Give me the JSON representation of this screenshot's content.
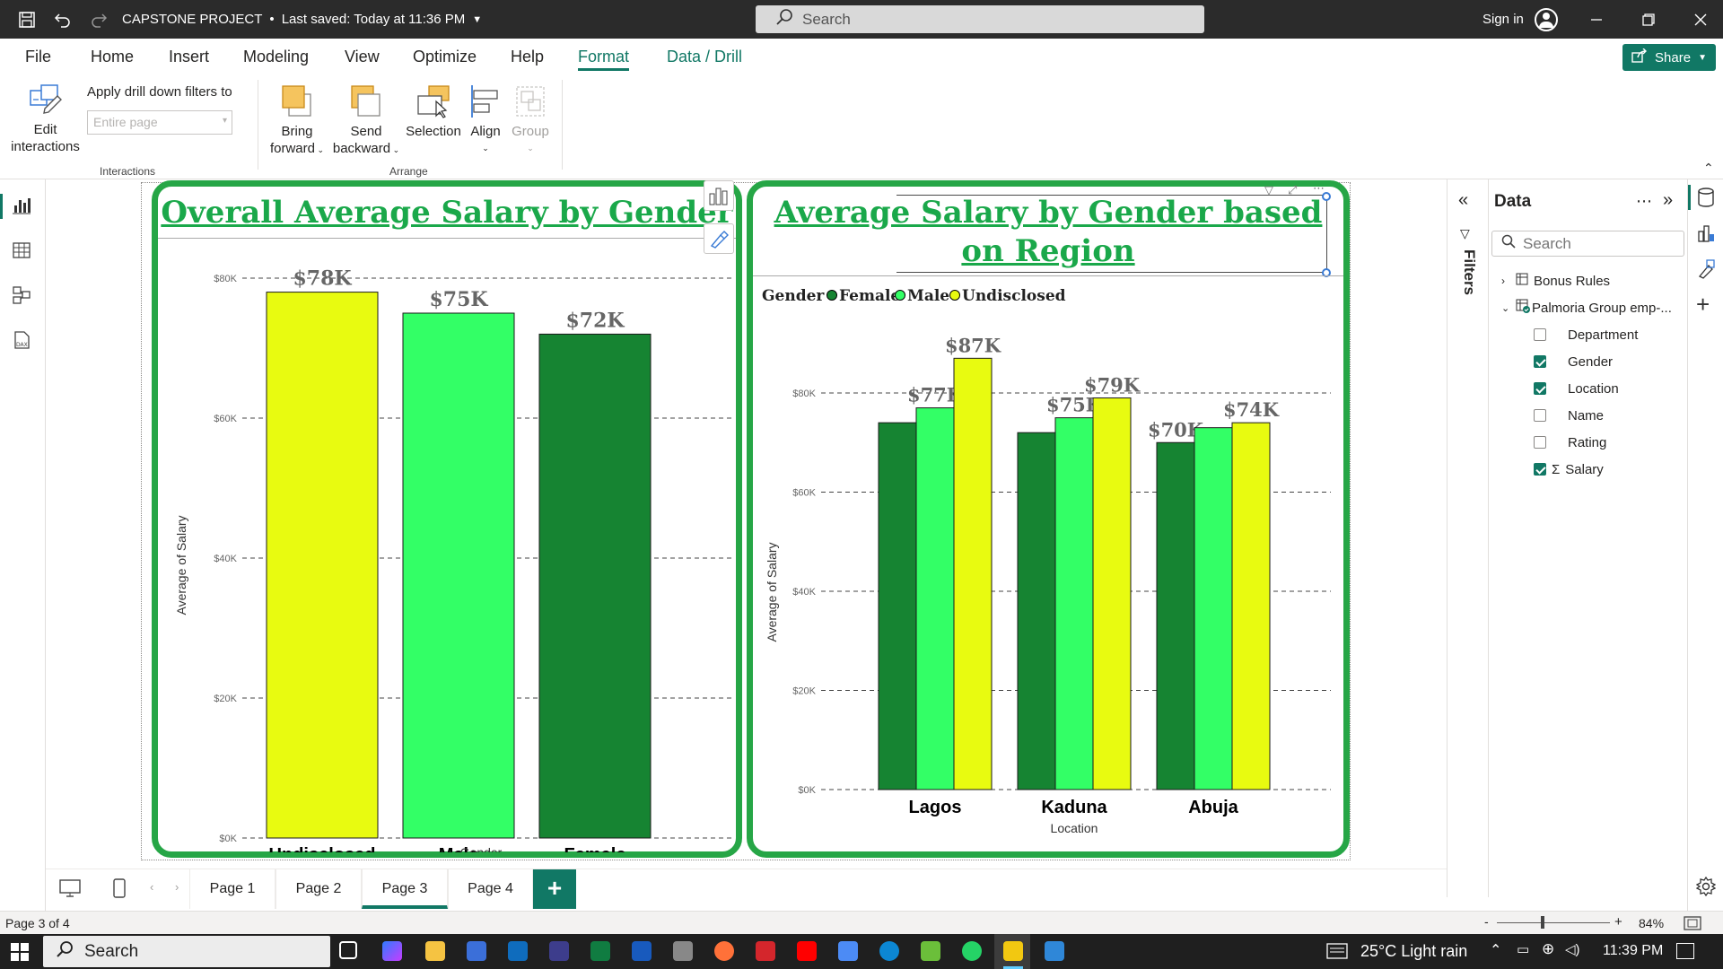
{
  "window": {
    "title": "CAPSTONE PROJECT",
    "save_status": "Last saved: Today at 11:36 PM",
    "search_placeholder": "Search",
    "signin": "Sign in"
  },
  "menu": {
    "items": [
      "File",
      "Home",
      "Insert",
      "Modeling",
      "View",
      "Optimize",
      "Help",
      "Format",
      "Data / Drill"
    ],
    "active": "Format",
    "share_label": "Share"
  },
  "ribbon": {
    "edit_interactions": [
      "Edit",
      "interactions"
    ],
    "drill_label": "Apply drill down filters to",
    "drill_placeholder": "Entire page",
    "group_interactions": "Interactions",
    "bring_forward": [
      "Bring",
      "forward"
    ],
    "send_backward": [
      "Send",
      "backward"
    ],
    "selection": "Selection",
    "align": "Align",
    "group": "Group",
    "group_arrange": "Arrange"
  },
  "charts": {
    "chart1_title": "Overall Average Salary by Gender",
    "chart2_title": "Average Salary by Gender based on Region",
    "chart2_legend_title": "Gender"
  },
  "chart_data": [
    {
      "type": "bar",
      "title": "Overall Average Salary by Gender",
      "xlabel": "Gender",
      "ylabel": "Average of Salary",
      "categories": [
        "Undisclosed",
        "Male",
        "Female"
      ],
      "values": [
        78000,
        75000,
        72000
      ],
      "data_labels": [
        "$78K",
        "$75K",
        "$72K"
      ],
      "bar_colors": [
        "#e8fb10",
        "#33ff66",
        "#168432"
      ],
      "y_ticks": [
        "$0K",
        "$20K",
        "$40K",
        "$60K",
        "$80K"
      ],
      "ylim": [
        0,
        80000
      ],
      "grid": true
    },
    {
      "type": "bar",
      "title": "Average Salary by Gender based on Region",
      "xlabel": "Location",
      "ylabel": "Average of Salary",
      "legend_title": "Gender",
      "legend_position": "top-left",
      "categories": [
        "Lagos",
        "Kaduna",
        "Abuja"
      ],
      "series": [
        {
          "name": "Female",
          "color": "#168432",
          "values": [
            74000,
            72000,
            70000
          ],
          "data_labels": [
            "",
            "",
            "$70K"
          ]
        },
        {
          "name": "Male",
          "color": "#33ff66",
          "values": [
            77000,
            75000,
            73000
          ],
          "data_labels": [
            "$77K",
            "$75K",
            ""
          ]
        },
        {
          "name": "Undisclosed",
          "color": "#e8fb10",
          "values": [
            87000,
            79000,
            74000
          ],
          "data_labels": [
            "$87K",
            "$79K",
            "$74K"
          ]
        }
      ],
      "y_ticks": [
        "$0K",
        "$20K",
        "$40K",
        "$60K",
        "$80K"
      ],
      "ylim": [
        0,
        80000
      ],
      "grid": true
    }
  ],
  "filters_label": "Filters",
  "data_pane": {
    "title": "Data",
    "search_placeholder": "Search",
    "tables": [
      {
        "name": "Bonus Rules",
        "expanded": false
      },
      {
        "name": "Palmoria Group emp-...",
        "expanded": true
      }
    ],
    "fields": [
      {
        "name": "Department",
        "checked": false,
        "sigma": false
      },
      {
        "name": "Gender",
        "checked": true,
        "sigma": false
      },
      {
        "name": "Location",
        "checked": true,
        "sigma": false
      },
      {
        "name": "Name",
        "checked": false,
        "sigma": false
      },
      {
        "name": "Rating",
        "checked": false,
        "sigma": false
      },
      {
        "name": "Salary",
        "checked": true,
        "sigma": true
      }
    ]
  },
  "pages": {
    "tabs": [
      "Page 1",
      "Page 2",
      "Page 3",
      "Page 4"
    ],
    "active": "Page 3",
    "add": "+"
  },
  "status": {
    "page_info": "Page 3 of 4",
    "zoom": "84%"
  },
  "taskbar": {
    "search": "Search",
    "weather": "25°C  Light rain",
    "time": "11:39 PM"
  },
  "icons": {
    "save": "save-icon",
    "undo": "undo-icon",
    "redo": "redo-icon",
    "search": "search-icon",
    "minimize": "minimize-icon",
    "restore": "restore-icon",
    "close": "close-icon",
    "share": "share-icon",
    "report_view": "report-view-icon",
    "table_view": "table-view-icon",
    "model_view": "model-view-icon",
    "dax": "dax-icon",
    "settings": "gear-icon"
  }
}
